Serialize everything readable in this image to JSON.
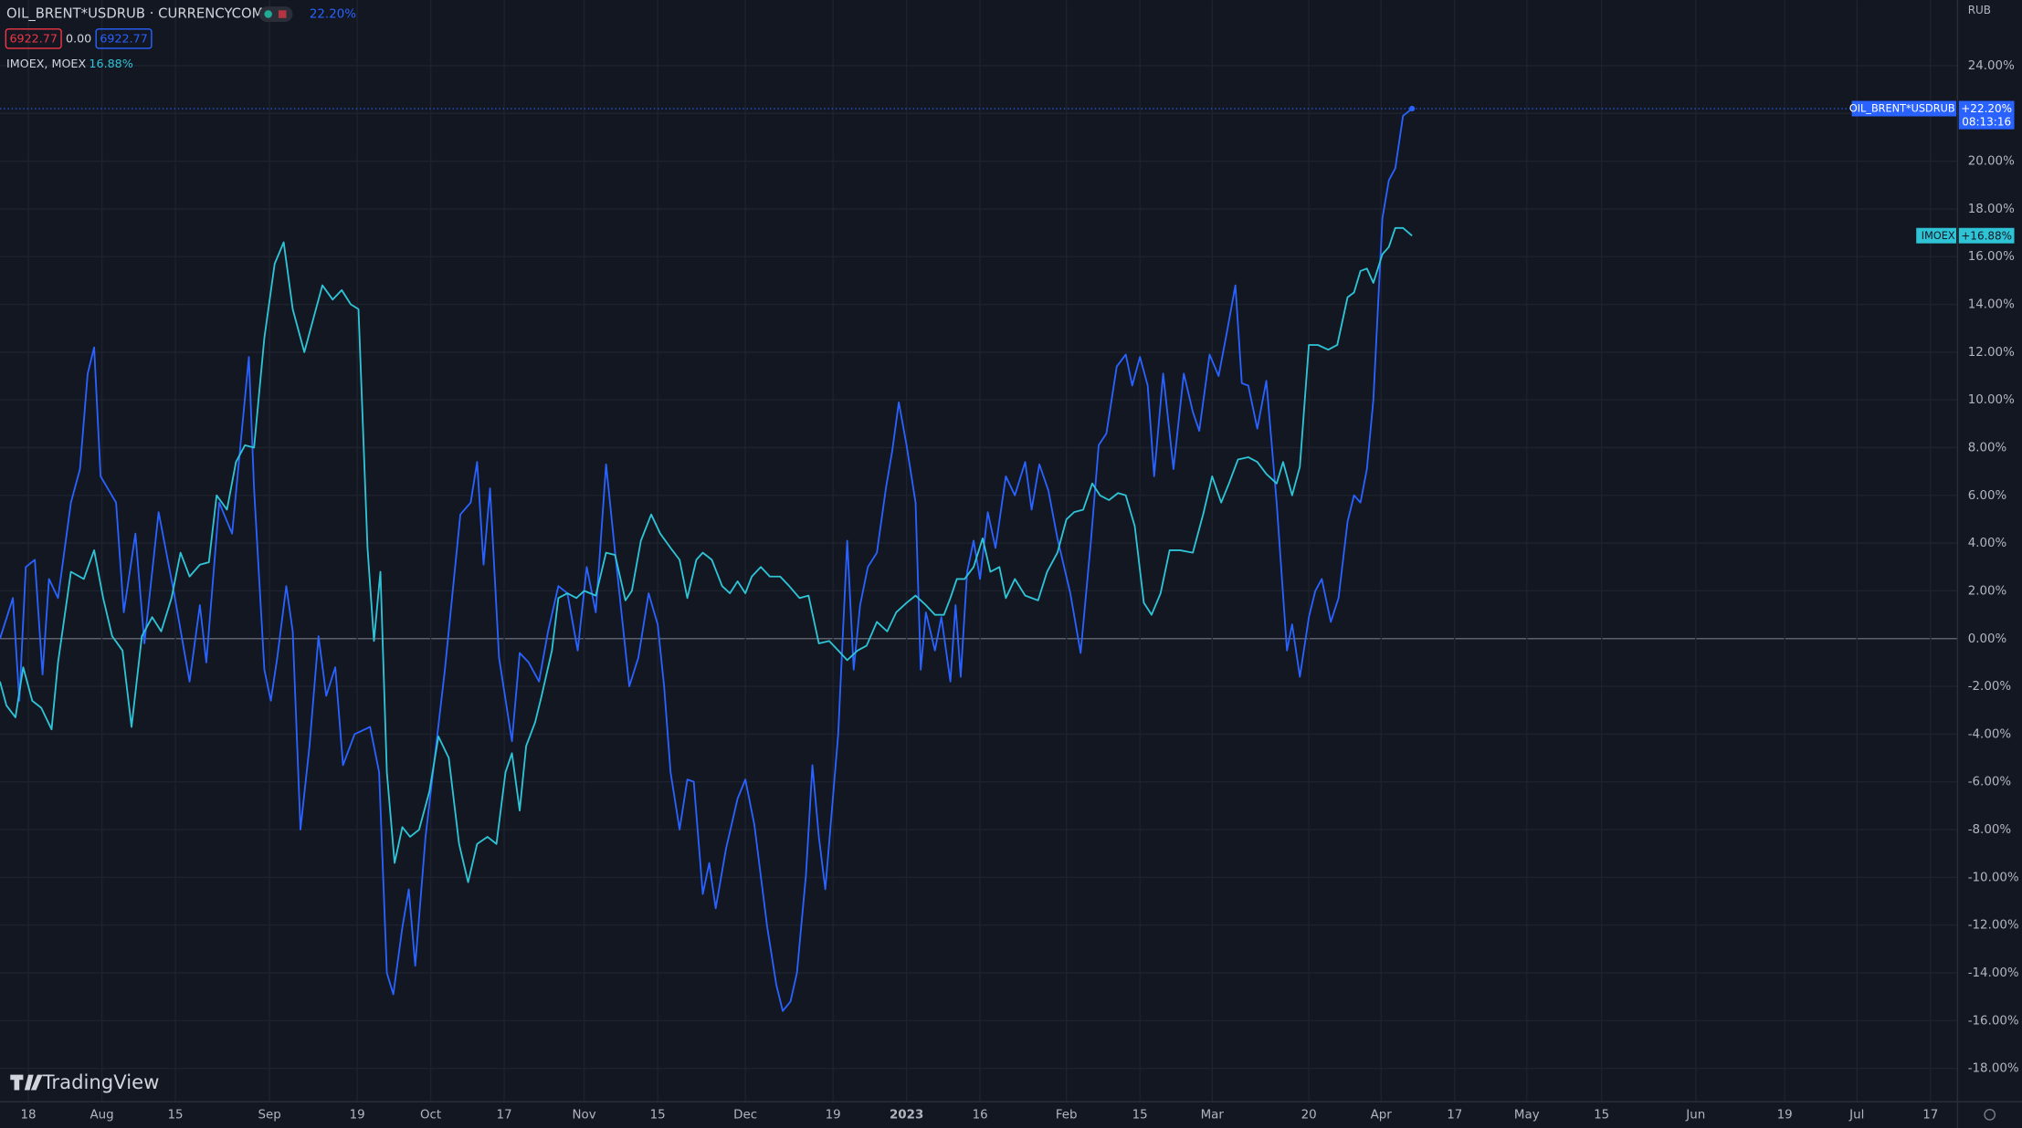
{
  "chart_data": {
    "type": "line",
    "header": {
      "symbol": "OIL_BRENT*USDRUB · CURRENCYCOM",
      "change": "22.20%",
      "bid": "6922.77",
      "spread": "0.00",
      "ask": "6922.77",
      "compare": "IMOEX, MOEX",
      "compare_change": "16.88%"
    },
    "currency": "RUB",
    "brand": "TradingView",
    "xlim": [
      0,
      1518
    ],
    "xticks": [
      {
        "value": 22,
        "label": "18"
      },
      {
        "value": 79,
        "label": "Aug"
      },
      {
        "value": 136,
        "label": "15"
      },
      {
        "value": 209,
        "label": "Sep"
      },
      {
        "value": 277,
        "label": "19"
      },
      {
        "value": 334,
        "label": "Oct"
      },
      {
        "value": 391,
        "label": "17"
      },
      {
        "value": 453,
        "label": "Nov"
      },
      {
        "value": 510,
        "label": "15"
      },
      {
        "value": 578,
        "label": "Dec"
      },
      {
        "value": 646,
        "label": "19"
      },
      {
        "value": 703,
        "label": "2023"
      },
      {
        "value": 760,
        "label": "16"
      },
      {
        "value": 827,
        "label": "Feb"
      },
      {
        "value": 884,
        "label": "15"
      },
      {
        "value": 940,
        "label": "Mar"
      },
      {
        "value": 1015,
        "label": "20"
      },
      {
        "value": 1071,
        "label": "Apr"
      },
      {
        "value": 1128,
        "label": "17"
      },
      {
        "value": 1184,
        "label": "May"
      },
      {
        "value": 1242,
        "label": "15"
      },
      {
        "value": 1315,
        "label": "Jun"
      },
      {
        "value": 1384,
        "label": "19"
      },
      {
        "value": 1440,
        "label": "Jul"
      },
      {
        "value": 1497,
        "label": "17"
      }
    ],
    "ylim": [
      -19.4,
      26.75
    ],
    "yticks": [
      {
        "value": -18,
        "label": "-18.00%"
      },
      {
        "value": -16,
        "label": "-16.00%"
      },
      {
        "value": -14,
        "label": "-14.00%"
      },
      {
        "value": -12,
        "label": "-12.00%"
      },
      {
        "value": -10,
        "label": "-10.00%"
      },
      {
        "value": -8,
        "label": "-8.00%"
      },
      {
        "value": -6,
        "label": "-6.00%"
      },
      {
        "value": -4,
        "label": "-4.00%"
      },
      {
        "value": -2,
        "label": "-2.00%"
      },
      {
        "value": 0,
        "label": "0.00%"
      },
      {
        "value": 2,
        "label": "2.00%"
      },
      {
        "value": 4,
        "label": "4.00%"
      },
      {
        "value": 6,
        "label": "6.00%"
      },
      {
        "value": 8,
        "label": "8.00%"
      },
      {
        "value": 10,
        "label": "10.00%"
      },
      {
        "value": 12,
        "label": "12.00%"
      },
      {
        "value": 14,
        "label": "14.00%"
      },
      {
        "value": 16,
        "label": "16.00%"
      },
      {
        "value": 18,
        "label": "18.00%"
      },
      {
        "value": 20,
        "label": "20.00%"
      },
      {
        "value": 22,
        "label": "22.00%"
      },
      {
        "value": 24,
        "label": "24.00%"
      }
    ],
    "grid": true,
    "series": [
      {
        "name": "OIL_BRENT*USDRUB",
        "color": "#2962ff",
        "last_label": "+22.20%",
        "time": "08:13:16",
        "x": [
          0,
          10,
          15,
          20,
          27,
          33,
          38,
          45,
          55,
          62,
          68,
          73,
          78,
          90,
          96,
          105,
          112,
          123,
          135,
          147,
          155,
          160,
          170,
          180,
          187,
          193,
          197,
          205,
          210,
          215,
          222,
          227,
          233,
          240,
          247,
          253,
          260,
          266,
          275,
          287,
          294,
          300,
          305,
          312,
          317,
          322,
          330,
          345,
          357,
          365,
          370,
          375,
          380,
          387,
          397,
          403,
          410,
          418,
          425,
          433,
          440,
          448,
          455,
          462,
          470,
          477,
          488,
          495,
          503,
          510,
          515,
          520,
          527,
          533,
          538,
          545,
          550,
          555,
          563,
          572,
          578,
          585,
          595,
          602,
          607,
          613,
          618,
          625,
          630,
          635,
          640,
          650,
          657,
          662,
          667,
          673,
          680,
          687,
          692,
          697,
          703,
          710,
          714,
          718,
          725,
          730,
          737,
          741,
          745,
          750,
          755,
          760,
          766,
          772,
          780,
          787,
          795,
          800,
          806,
          813,
          820,
          830,
          838,
          846,
          852,
          858,
          866,
          873,
          878,
          884,
          890,
          895,
          902,
          910,
          918,
          925,
          930,
          938,
          945,
          952,
          958,
          963,
          968,
          975,
          982,
          990,
          998,
          1002,
          1008,
          1015,
          1020,
          1025,
          1032,
          1038,
          1045,
          1050,
          1055,
          1060,
          1065,
          1072,
          1077,
          1082,
          1088,
          1095
        ],
        "values": [
          0,
          1.7,
          -2.6,
          3.0,
          3.3,
          -1.5,
          2.5,
          1.7,
          5.7,
          7.1,
          11.1,
          12.2,
          6.8,
          5.7,
          1.1,
          4.4,
          -0.2,
          5.3,
          1.9,
          -1.8,
          1.4,
          -1.0,
          5.7,
          4.4,
          8.4,
          11.8,
          6.3,
          -1.3,
          -2.6,
          -0.8,
          2.2,
          0.3,
          -8.0,
          -4.5,
          0.1,
          -2.4,
          -1.2,
          -5.3,
          -4.0,
          -3.7,
          -5.6,
          -14.0,
          -14.9,
          -12.1,
          -10.5,
          -13.7,
          -8.3,
          -1.3,
          5.2,
          5.7,
          7.4,
          3.1,
          6.3,
          -0.8,
          -4.3,
          -0.6,
          -1.0,
          -1.8,
          0.3,
          2.2,
          1.9,
          -0.5,
          3.0,
          1.1,
          7.3,
          3.6,
          -2.0,
          -0.8,
          1.9,
          0.6,
          -2.0,
          -5.6,
          -8.0,
          -5.9,
          -6.0,
          -10.7,
          -9.4,
          -11.3,
          -8.8,
          -6.7,
          -5.9,
          -7.8,
          -12.1,
          -14.5,
          -15.6,
          -15.2,
          -14.0,
          -9.9,
          -5.3,
          -8.3,
          -10.5,
          -4.0,
          4.1,
          -1.3,
          1.4,
          3.0,
          3.6,
          6.3,
          7.9,
          9.9,
          8.1,
          5.7,
          -1.3,
          1.1,
          -0.5,
          0.9,
          -1.8,
          1.4,
          -1.6,
          2.8,
          4.1,
          2.5,
          5.3,
          3.8,
          6.8,
          6.0,
          7.4,
          5.4,
          7.3,
          6.2,
          4.2,
          1.9,
          -0.6,
          4.1,
          8.1,
          8.6,
          11.4,
          11.9,
          10.6,
          11.8,
          10.6,
          6.8,
          11.1,
          7.1,
          11.1,
          9.5,
          8.7,
          11.9,
          11.0,
          13.0,
          14.8,
          10.7,
          10.6,
          8.8,
          10.8,
          5.7,
          -0.5,
          0.6,
          -1.6,
          0.9,
          2.0,
          2.5,
          0.7,
          1.7,
          4.9,
          6.0,
          5.7,
          7.1,
          10.0,
          17.6,
          19.2,
          19.7,
          21.9,
          22.2
        ]
      },
      {
        "name": "IMOEX",
        "color": "#2ec4d6",
        "last_label": "+16.88%",
        "x": [
          0,
          5,
          12,
          18,
          25,
          32,
          40,
          45,
          55,
          65,
          73,
          80,
          87,
          95,
          102,
          110,
          118,
          125,
          133,
          140,
          147,
          155,
          162,
          168,
          176,
          183,
          190,
          197,
          205,
          213,
          220,
          227,
          236,
          243,
          250,
          258,
          265,
          272,
          278,
          285,
          290,
          295,
          300,
          306,
          312,
          318,
          325,
          333,
          340,
          348,
          356,
          363,
          370,
          378,
          385,
          392,
          397,
          403,
          408,
          415,
          420,
          428,
          433,
          440,
          447,
          453,
          462,
          470,
          477,
          485,
          490,
          497,
          505,
          512,
          520,
          527,
          533,
          540,
          545,
          552,
          560,
          566,
          572,
          578,
          583,
          590,
          597,
          605,
          612,
          620,
          627,
          635,
          643,
          650,
          657,
          665,
          672,
          680,
          688,
          695,
          703,
          710,
          718,
          725,
          732,
          737,
          742,
          748,
          755,
          762,
          768,
          775,
          780,
          787,
          795,
          805,
          812,
          820,
          827,
          833,
          840,
          847,
          853,
          860,
          867,
          873,
          880,
          887,
          893,
          900,
          907,
          915,
          925,
          933,
          940,
          947,
          953,
          960,
          968,
          975,
          982,
          990,
          995,
          1002,
          1008,
          1015,
          1022,
          1030,
          1037,
          1045,
          1050,
          1055,
          1060,
          1065,
          1072,
          1077,
          1082,
          1088,
          1095
        ],
        "values": [
          -1.8,
          -2.8,
          -3.3,
          -1.2,
          -2.6,
          -2.9,
          -3.8,
          -1.0,
          2.8,
          2.5,
          3.7,
          1.7,
          0.1,
          -0.5,
          -3.7,
          0.1,
          0.9,
          0.3,
          1.7,
          3.6,
          2.6,
          3.1,
          3.2,
          6.0,
          5.4,
          7.4,
          8.1,
          8.0,
          12.6,
          15.7,
          16.6,
          13.8,
          12.0,
          13.4,
          14.8,
          14.2,
          14.6,
          14.0,
          13.8,
          3.8,
          -0.1,
          2.8,
          -5.6,
          -9.4,
          -7.9,
          -8.3,
          -8.0,
          -6.4,
          -4.1,
          -5.0,
          -8.6,
          -10.2,
          -8.6,
          -8.3,
          -8.6,
          -5.6,
          -4.8,
          -7.2,
          -4.5,
          -3.5,
          -2.4,
          -0.5,
          1.7,
          1.9,
          1.7,
          2.0,
          1.8,
          3.6,
          3.5,
          1.6,
          2.0,
          4.1,
          5.2,
          4.4,
          3.8,
          3.3,
          1.7,
          3.3,
          3.6,
          3.3,
          2.2,
          1.9,
          2.4,
          1.9,
          2.6,
          3.0,
          2.6,
          2.6,
          2.2,
          1.7,
          1.8,
          -0.2,
          -0.1,
          -0.5,
          -0.9,
          -0.5,
          -0.3,
          0.7,
          0.3,
          1.1,
          1.5,
          1.8,
          1.4,
          1.0,
          1.0,
          1.7,
          2.5,
          2.5,
          3.0,
          4.2,
          2.8,
          3.0,
          1.7,
          2.5,
          1.8,
          1.6,
          2.8,
          3.6,
          5.0,
          5.3,
          5.4,
          6.5,
          6.0,
          5.8,
          6.1,
          6.0,
          4.7,
          1.5,
          1.0,
          1.9,
          3.7,
          3.7,
          3.6,
          5.2,
          6.8,
          5.7,
          6.5,
          7.5,
          7.6,
          7.4,
          6.9,
          6.5,
          7.4,
          6.0,
          7.2,
          12.3,
          12.3,
          12.1,
          12.3,
          14.3,
          14.5,
          15.4,
          15.5,
          14.9,
          16.1,
          16.4,
          17.2,
          17.2,
          16.88
        ]
      }
    ]
  }
}
